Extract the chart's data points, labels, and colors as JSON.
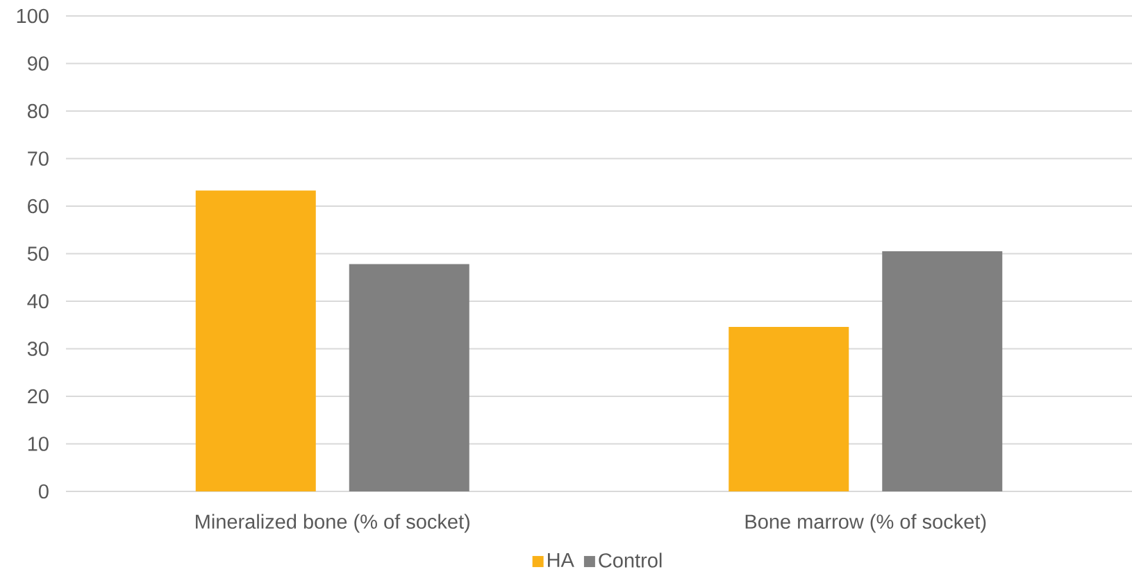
{
  "chart_data": {
    "type": "bar",
    "categories": [
      "Mineralized bone (% of socket)",
      "Bone marrow (% of socket)"
    ],
    "series": [
      {
        "name": "HA",
        "color": "#FAB118",
        "values": [
          63.3,
          34.6
        ]
      },
      {
        "name": "Control",
        "color": "#808080",
        "values": [
          47.8,
          50.5
        ]
      }
    ],
    "ylim": [
      0,
      100
    ],
    "yticks": [
      0,
      10,
      20,
      30,
      40,
      50,
      60,
      70,
      80,
      90,
      100
    ],
    "grid": "y",
    "legend": "bottom"
  }
}
